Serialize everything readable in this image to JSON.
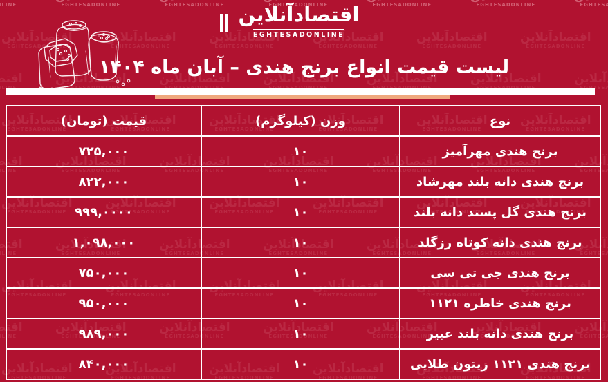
{
  "page": {
    "background_color": "#b11230",
    "accent_bar_color": "#efa87e",
    "text_color": "#ffffff"
  },
  "brand": {
    "logo_fa": "اقتصادآنلاین",
    "logo_en": "EGHTESADONLINE",
    "watermark_fa": "اقتصادآنلاین",
    "watermark_en": "EGHTESADONLINE"
  },
  "header": {
    "title": "لیست قیمت انواع برنج هندی – آبان ماه ۱۴۰۴",
    "illustration": "rice-sacks-line-art"
  },
  "table": {
    "columns": [
      "نوع",
      "وزن (کیلوگرم)",
      "قیمت (تومان)"
    ],
    "rows": [
      {
        "type": "برنج هندی مهرآمیز",
        "weight": "۱۰",
        "price": "۷۲۵,۰۰۰"
      },
      {
        "type": "برنج هندی دانه بلند مهرشاد",
        "weight": "۱۰",
        "price": "۸۲۲,۰۰۰"
      },
      {
        "type": "برنج هندی گل پسند دانه بلند",
        "weight": "۱۰",
        "price": "۹۹۹,۰۰۰۰"
      },
      {
        "type": "برنج هندی دانه کوتاه رزگلد",
        "weight": "۱۰",
        "price": "۱,۰۹۸,۰۰۰"
      },
      {
        "type": "برنج هندی جی تی سی",
        "weight": "۱۰",
        "price": "۷۵۰,۰۰۰"
      },
      {
        "type": "برنج هندی خاطره ۱۱۲۱",
        "weight": "۱۰",
        "price": "۹۵۰,۰۰۰"
      },
      {
        "type": "برنج هندی دانه بلند عبیر",
        "weight": "۱۰",
        "price": "۹۸۹,۰۰۰"
      },
      {
        "type": "برنج هندی ۱۱۲۱ زیتون طلایی",
        "weight": "۱۰",
        "price": "۸۴۰,۰۰۰"
      }
    ]
  }
}
